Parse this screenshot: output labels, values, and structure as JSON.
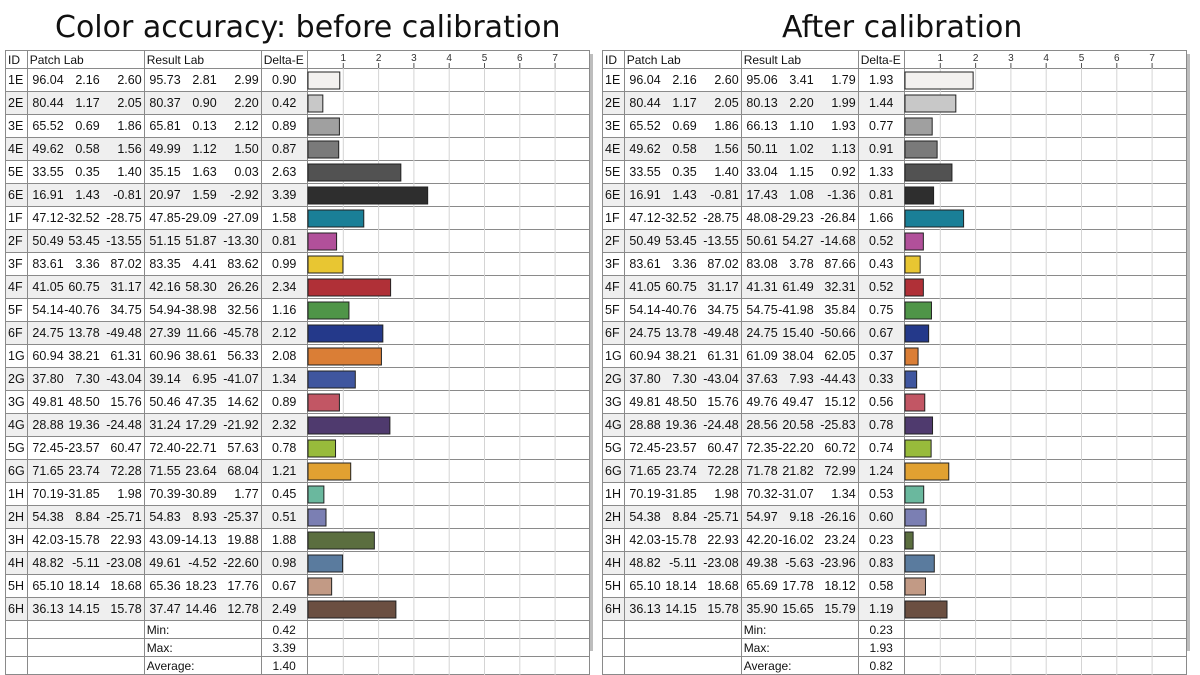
{
  "titles": {
    "left": "Color accuracy: before calibration",
    "right": "After calibration"
  },
  "headers": {
    "id": "ID",
    "patch": "Patch Lab",
    "result": "Result Lab",
    "delta": "Delta-E"
  },
  "summary_labels": {
    "min": "Min:",
    "max": "Max:",
    "avg": "Average:"
  },
  "chart_data": [
    {
      "type": "table",
      "title": "Color accuracy: before calibration",
      "axis_ticks": [
        "1",
        "2",
        "3",
        "4",
        "5",
        "6",
        "7"
      ],
      "xlim": [
        0,
        7.6
      ],
      "rows": [
        {
          "id": "1E",
          "patch": [
            "96.04",
            "2.16",
            "2.60"
          ],
          "result": [
            "95.73",
            "2.81",
            "2.99"
          ],
          "de": "0.90",
          "color": "#f3f1ef"
        },
        {
          "id": "2E",
          "patch": [
            "80.44",
            "1.17",
            "2.05"
          ],
          "result": [
            "80.37",
            "0.90",
            "2.20"
          ],
          "de": "0.42",
          "color": "#c8c8c8"
        },
        {
          "id": "3E",
          "patch": [
            "65.52",
            "0.69",
            "1.86"
          ],
          "result": [
            "65.81",
            "0.13",
            "2.12"
          ],
          "de": "0.89",
          "color": "#a0a0a0"
        },
        {
          "id": "4E",
          "patch": [
            "49.62",
            "0.58",
            "1.56"
          ],
          "result": [
            "49.99",
            "1.12",
            "1.50"
          ],
          "de": "0.87",
          "color": "#7a7a7a"
        },
        {
          "id": "5E",
          "patch": [
            "33.55",
            "0.35",
            "1.40"
          ],
          "result": [
            "35.15",
            "1.63",
            "0.03"
          ],
          "de": "2.63",
          "color": "#525252"
        },
        {
          "id": "6E",
          "patch": [
            "16.91",
            "1.43",
            "-0.81"
          ],
          "result": [
            "20.97",
            "1.59",
            "-2.92"
          ],
          "de": "3.39",
          "color": "#2e2e2e"
        },
        {
          "id": "1F",
          "patch": [
            "47.12",
            "-32.52",
            "-28.75"
          ],
          "result": [
            "47.85",
            "-29.09",
            "-27.09"
          ],
          "de": "1.58",
          "color": "#1a7f97"
        },
        {
          "id": "2F",
          "patch": [
            "50.49",
            "53.45",
            "-13.55"
          ],
          "result": [
            "51.15",
            "51.87",
            "-13.30"
          ],
          "de": "0.81",
          "color": "#b1509a"
        },
        {
          "id": "3F",
          "patch": [
            "83.61",
            "3.36",
            "87.02"
          ],
          "result": [
            "83.35",
            "4.41",
            "83.62"
          ],
          "de": "0.99",
          "color": "#e8c632"
        },
        {
          "id": "4F",
          "patch": [
            "41.05",
            "60.75",
            "31.17"
          ],
          "result": [
            "42.16",
            "58.30",
            "26.26"
          ],
          "de": "2.34",
          "color": "#b03037"
        },
        {
          "id": "5F",
          "patch": [
            "54.14",
            "-40.76",
            "34.75"
          ],
          "result": [
            "54.94",
            "-38.98",
            "32.56"
          ],
          "de": "1.16",
          "color": "#4f9548"
        },
        {
          "id": "6F",
          "patch": [
            "24.75",
            "13.78",
            "-49.48"
          ],
          "result": [
            "27.39",
            "11.66",
            "-45.78"
          ],
          "de": "2.12",
          "color": "#24398a"
        },
        {
          "id": "1G",
          "patch": [
            "60.94",
            "38.21",
            "61.31"
          ],
          "result": [
            "60.96",
            "38.61",
            "56.33"
          ],
          "de": "2.08",
          "color": "#da7e36"
        },
        {
          "id": "2G",
          "patch": [
            "37.80",
            "7.30",
            "-43.04"
          ],
          "result": [
            "39.14",
            "6.95",
            "-41.07"
          ],
          "de": "1.34",
          "color": "#3f569f"
        },
        {
          "id": "3G",
          "patch": [
            "49.81",
            "48.50",
            "15.76"
          ],
          "result": [
            "50.46",
            "47.35",
            "14.62"
          ],
          "de": "0.89",
          "color": "#c25664"
        },
        {
          "id": "4G",
          "patch": [
            "28.88",
            "19.36",
            "-24.48"
          ],
          "result": [
            "31.24",
            "17.29",
            "-21.92"
          ],
          "de": "2.32",
          "color": "#4f3a6e"
        },
        {
          "id": "5G",
          "patch": [
            "72.45",
            "-23.57",
            "60.47"
          ],
          "result": [
            "72.40",
            "-22.71",
            "57.63"
          ],
          "de": "0.78",
          "color": "#98bb3b"
        },
        {
          "id": "6G",
          "patch": [
            "71.65",
            "23.74",
            "72.28"
          ],
          "result": [
            "71.55",
            "23.64",
            "68.04"
          ],
          "de": "1.21",
          "color": "#e1a131"
        },
        {
          "id": "1H",
          "patch": [
            "70.19",
            "-31.85",
            "1.98"
          ],
          "result": [
            "70.39",
            "-30.89",
            "1.77"
          ],
          "de": "0.45",
          "color": "#6ab89e"
        },
        {
          "id": "2H",
          "patch": [
            "54.38",
            "8.84",
            "-25.71"
          ],
          "result": [
            "54.83",
            "8.93",
            "-25.37"
          ],
          "de": "0.51",
          "color": "#7b7fb3"
        },
        {
          "id": "3H",
          "patch": [
            "42.03",
            "-15.78",
            "22.93"
          ],
          "result": [
            "43.09",
            "-14.13",
            "19.88"
          ],
          "de": "1.88",
          "color": "#5b6e3f"
        },
        {
          "id": "4H",
          "patch": [
            "48.82",
            "-5.11",
            "-23.08"
          ],
          "result": [
            "49.61",
            "-4.52",
            "-22.60"
          ],
          "de": "0.98",
          "color": "#5a7b9e"
        },
        {
          "id": "5H",
          "patch": [
            "65.10",
            "18.14",
            "18.68"
          ],
          "result": [
            "65.36",
            "18.23",
            "17.76"
          ],
          "de": "0.67",
          "color": "#c29a85"
        },
        {
          "id": "6H",
          "patch": [
            "36.13",
            "14.15",
            "15.78"
          ],
          "result": [
            "37.47",
            "14.46",
            "12.78"
          ],
          "de": "2.49",
          "color": "#6b4f41"
        }
      ],
      "summary": {
        "min": "0.42",
        "max": "3.39",
        "avg": "1.40"
      }
    },
    {
      "type": "table",
      "title": "After calibration",
      "axis_ticks": [
        "1",
        "2",
        "3",
        "4",
        "5",
        "6",
        "7"
      ],
      "xlim": [
        0,
        7.6
      ],
      "rows": [
        {
          "id": "1E",
          "patch": [
            "96.04",
            "2.16",
            "2.60"
          ],
          "result": [
            "95.06",
            "3.41",
            "1.79"
          ],
          "de": "1.93",
          "color": "#f3f1ef"
        },
        {
          "id": "2E",
          "patch": [
            "80.44",
            "1.17",
            "2.05"
          ],
          "result": [
            "80.13",
            "2.20",
            "1.99"
          ],
          "de": "1.44",
          "color": "#c8c8c8"
        },
        {
          "id": "3E",
          "patch": [
            "65.52",
            "0.69",
            "1.86"
          ],
          "result": [
            "66.13",
            "1.10",
            "1.93"
          ],
          "de": "0.77",
          "color": "#a0a0a0"
        },
        {
          "id": "4E",
          "patch": [
            "49.62",
            "0.58",
            "1.56"
          ],
          "result": [
            "50.11",
            "1.02",
            "1.13"
          ],
          "de": "0.91",
          "color": "#7a7a7a"
        },
        {
          "id": "5E",
          "patch": [
            "33.55",
            "0.35",
            "1.40"
          ],
          "result": [
            "33.04",
            "1.15",
            "0.92"
          ],
          "de": "1.33",
          "color": "#525252"
        },
        {
          "id": "6E",
          "patch": [
            "16.91",
            "1.43",
            "-0.81"
          ],
          "result": [
            "17.43",
            "1.08",
            "-1.36"
          ],
          "de": "0.81",
          "color": "#2e2e2e"
        },
        {
          "id": "1F",
          "patch": [
            "47.12",
            "-32.52",
            "-28.75"
          ],
          "result": [
            "48.08",
            "-29.23",
            "-26.84"
          ],
          "de": "1.66",
          "color": "#1a7f97"
        },
        {
          "id": "2F",
          "patch": [
            "50.49",
            "53.45",
            "-13.55"
          ],
          "result": [
            "50.61",
            "54.27",
            "-14.68"
          ],
          "de": "0.52",
          "color": "#b1509a"
        },
        {
          "id": "3F",
          "patch": [
            "83.61",
            "3.36",
            "87.02"
          ],
          "result": [
            "83.08",
            "3.78",
            "87.66"
          ],
          "de": "0.43",
          "color": "#e8c632"
        },
        {
          "id": "4F",
          "patch": [
            "41.05",
            "60.75",
            "31.17"
          ],
          "result": [
            "41.31",
            "61.49",
            "32.31"
          ],
          "de": "0.52",
          "color": "#b03037"
        },
        {
          "id": "5F",
          "patch": [
            "54.14",
            "-40.76",
            "34.75"
          ],
          "result": [
            "54.75",
            "-41.98",
            "35.84"
          ],
          "de": "0.75",
          "color": "#4f9548"
        },
        {
          "id": "6F",
          "patch": [
            "24.75",
            "13.78",
            "-49.48"
          ],
          "result": [
            "24.75",
            "15.40",
            "-50.66"
          ],
          "de": "0.67",
          "color": "#24398a"
        },
        {
          "id": "1G",
          "patch": [
            "60.94",
            "38.21",
            "61.31"
          ],
          "result": [
            "61.09",
            "38.04",
            "62.05"
          ],
          "de": "0.37",
          "color": "#da7e36"
        },
        {
          "id": "2G",
          "patch": [
            "37.80",
            "7.30",
            "-43.04"
          ],
          "result": [
            "37.63",
            "7.93",
            "-44.43"
          ],
          "de": "0.33",
          "color": "#3f569f"
        },
        {
          "id": "3G",
          "patch": [
            "49.81",
            "48.50",
            "15.76"
          ],
          "result": [
            "49.76",
            "49.47",
            "15.12"
          ],
          "de": "0.56",
          "color": "#c25664"
        },
        {
          "id": "4G",
          "patch": [
            "28.88",
            "19.36",
            "-24.48"
          ],
          "result": [
            "28.56",
            "20.58",
            "-25.83"
          ],
          "de": "0.78",
          "color": "#4f3a6e"
        },
        {
          "id": "5G",
          "patch": [
            "72.45",
            "-23.57",
            "60.47"
          ],
          "result": [
            "72.35",
            "-22.20",
            "60.72"
          ],
          "de": "0.74",
          "color": "#98bb3b"
        },
        {
          "id": "6G",
          "patch": [
            "71.65",
            "23.74",
            "72.28"
          ],
          "result": [
            "71.78",
            "21.82",
            "72.99"
          ],
          "de": "1.24",
          "color": "#e1a131"
        },
        {
          "id": "1H",
          "patch": [
            "70.19",
            "-31.85",
            "1.98"
          ],
          "result": [
            "70.32",
            "-31.07",
            "1.34"
          ],
          "de": "0.53",
          "color": "#6ab89e"
        },
        {
          "id": "2H",
          "patch": [
            "54.38",
            "8.84",
            "-25.71"
          ],
          "result": [
            "54.97",
            "9.18",
            "-26.16"
          ],
          "de": "0.60",
          "color": "#7b7fb3"
        },
        {
          "id": "3H",
          "patch": [
            "42.03",
            "-15.78",
            "22.93"
          ],
          "result": [
            "42.20",
            "-16.02",
            "23.24"
          ],
          "de": "0.23",
          "color": "#5b6e3f"
        },
        {
          "id": "4H",
          "patch": [
            "48.82",
            "-5.11",
            "-23.08"
          ],
          "result": [
            "49.38",
            "-5.63",
            "-23.96"
          ],
          "de": "0.83",
          "color": "#5a7b9e"
        },
        {
          "id": "5H",
          "patch": [
            "65.10",
            "18.14",
            "18.68"
          ],
          "result": [
            "65.69",
            "17.78",
            "18.12"
          ],
          "de": "0.58",
          "color": "#c29a85"
        },
        {
          "id": "6H",
          "patch": [
            "36.13",
            "14.15",
            "15.78"
          ],
          "result": [
            "35.90",
            "15.65",
            "15.79"
          ],
          "de": "1.19",
          "color": "#6b4f41"
        }
      ],
      "summary": {
        "min": "0.23",
        "max": "1.93",
        "avg": "0.82"
      }
    }
  ]
}
